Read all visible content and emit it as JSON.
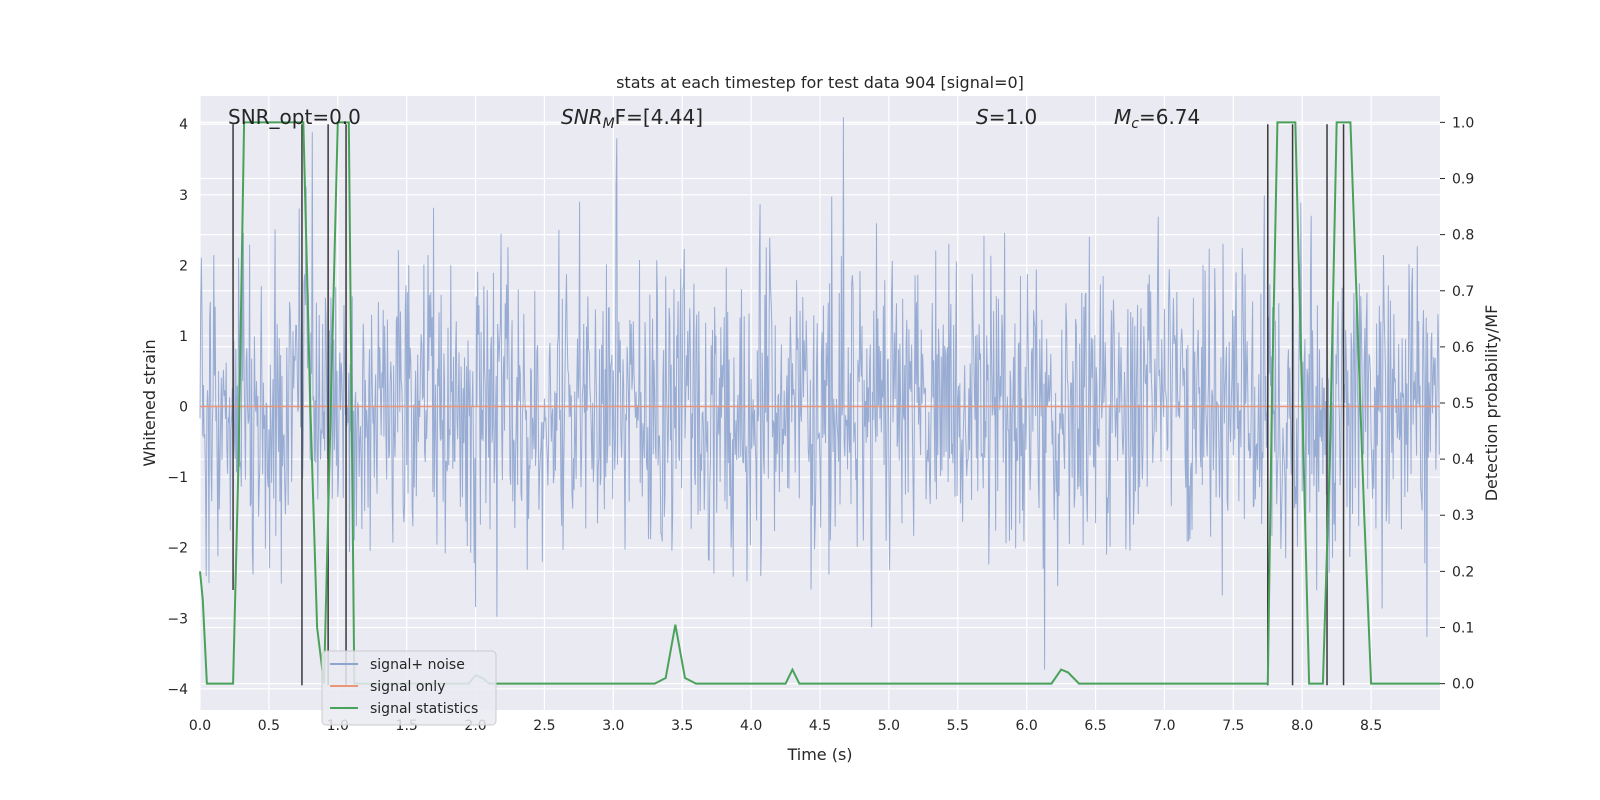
{
  "chart_data": {
    "type": "line",
    "title": "stats at each timestep for test data 904 [signal=0]",
    "xlabel": "Time (s)",
    "ylabel": "Whitened strain",
    "y2label": "Detection probability/MF",
    "xlim": [
      0.0,
      9.0
    ],
    "ylim": [
      -4.3,
      4.4
    ],
    "y2lim": [
      -0.047,
      1.047
    ],
    "grid": true,
    "xticks": [
      "0.0",
      "0.5",
      "1.0",
      "1.5",
      "2.0",
      "2.5",
      "3.0",
      "3.5",
      "4.0",
      "4.5",
      "5.0",
      "5.5",
      "6.0",
      "6.5",
      "7.0",
      "7.5",
      "8.0",
      "8.5"
    ],
    "yticks": [
      "4",
      "3",
      "2",
      "1",
      "0",
      "−1",
      "−2",
      "−3",
      "−4"
    ],
    "y2ticks": [
      "1.0",
      "0.9",
      "0.8",
      "0.7",
      "0.6",
      "0.5",
      "0.4",
      "0.3",
      "0.2",
      "0.1",
      "0.0"
    ],
    "annotations": {
      "snr_opt": "SNR_opt=0.0",
      "snr_mf_main": "SNR",
      "snr_mf_sub": "M",
      "snr_mf_rest": "F=[4.44]",
      "s_var": "S",
      "s_rest": "=1.0",
      "mc_var": "M",
      "mc_sub": "c",
      "mc_rest": "=6.74"
    },
    "legend": {
      "position": "lower-left",
      "entries": [
        "signal+ noise",
        "signal only",
        "signal statistics"
      ]
    },
    "series": [
      {
        "name": "signal+ noise",
        "kind": "noise",
        "color": "#8fa5cf",
        "duration": 9.0,
        "samples": 1800,
        "sigma": 1.0,
        "seed": 904
      },
      {
        "name": "signal only",
        "kind": "line",
        "color": "#e9967a",
        "x": [
          0.0,
          9.0
        ],
        "y": [
          0.0,
          0.0
        ]
      },
      {
        "name": "signal statistics",
        "kind": "line",
        "axis": "right",
        "color": "#4aa25a",
        "x": [
          0.0,
          0.02,
          0.05,
          0.1,
          0.15,
          0.2,
          0.24,
          0.28,
          0.32,
          0.45,
          0.6,
          0.72,
          0.75,
          0.8,
          0.85,
          0.9,
          0.95,
          1.0,
          1.08,
          1.12,
          1.2,
          1.5,
          1.8,
          1.95,
          2.0,
          2.05,
          2.1,
          2.5,
          3.0,
          3.3,
          3.38,
          3.45,
          3.52,
          3.6,
          3.8,
          3.9,
          4.0,
          4.25,
          4.3,
          4.35,
          4.5,
          5.0,
          5.5,
          6.0,
          6.18,
          6.25,
          6.3,
          6.38,
          6.5,
          6.8,
          7.0,
          7.5,
          7.75,
          7.78,
          7.82,
          7.85,
          7.9,
          7.95,
          8.0,
          8.05,
          8.08,
          8.1,
          8.15,
          8.2,
          8.25,
          8.3,
          8.35,
          8.45,
          8.5,
          8.6,
          9.0
        ],
        "y": [
          0.2,
          0.15,
          0.0,
          0.0,
          0.0,
          0.0,
          0.0,
          0.4,
          1.0,
          1.0,
          1.0,
          1.0,
          1.0,
          0.5,
          0.1,
          0.0,
          0.5,
          1.0,
          1.0,
          0.0,
          0.0,
          0.0,
          0.0,
          0.0,
          0.015,
          0.01,
          0.0,
          0.0,
          0.0,
          0.0,
          0.01,
          0.105,
          0.01,
          0.0,
          0.0,
          0.0,
          0.0,
          0.0,
          0.025,
          0.0,
          0.0,
          0.0,
          0.0,
          0.0,
          0.0,
          0.025,
          0.02,
          0.0,
          0.0,
          0.0,
          0.0,
          0.0,
          0.0,
          0.5,
          1.0,
          1.0,
          1.0,
          1.0,
          0.5,
          0.0,
          0.0,
          0.0,
          0.0,
          0.4,
          1.0,
          1.0,
          1.0,
          0.3,
          0.0,
          0.0,
          0.0
        ]
      },
      {
        "name": "markers",
        "kind": "vlines",
        "color": "#3a3a3a",
        "x": [
          0.24,
          0.74,
          0.93,
          1.06,
          7.75,
          7.93,
          8.18,
          8.3
        ],
        "ymin": [
          -2.6,
          -3.95,
          -3.95,
          -3.95,
          -3.95,
          -3.95,
          -3.95,
          -3.95
        ],
        "ymax": [
          4.0,
          4.0,
          4.0,
          4.0,
          4.0,
          4.0,
          4.0,
          4.0
        ]
      }
    ]
  }
}
